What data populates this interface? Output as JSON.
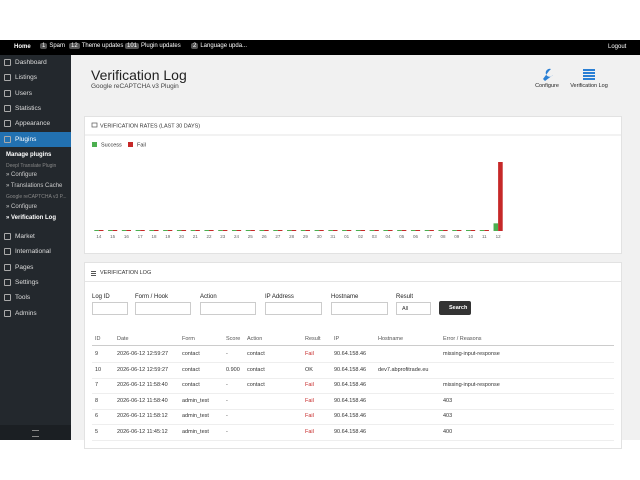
{
  "topbar": {
    "home": "Home",
    "items": [
      {
        "count": "1",
        "label": "Spam"
      },
      {
        "count": "12",
        "label": "Theme updates"
      },
      {
        "count": "101",
        "label": "Plugin updates"
      },
      {
        "count": "2",
        "label": "Language upda..."
      }
    ],
    "logout": "Logout"
  },
  "sidebar": {
    "menu_top": [
      "Dashboard",
      "Listings",
      "Users",
      "Statistics",
      "Appearance",
      "Plugins"
    ],
    "submenu": [
      "Manage plugins",
      "Deepl Translate Plugin",
      "» Configure",
      "» Translations Cache",
      "Google reCAPTCHA v3 P...",
      "» Configure",
      "» Verification Log"
    ],
    "menu_bottom": [
      "Market",
      "International",
      "Pages",
      "Settings",
      "Tools",
      "Admins"
    ]
  },
  "header": {
    "title": "Verification Log",
    "subtitle": "Google reCAPTCHA v3 Plugin",
    "buttons": [
      "Configure",
      "Verification Log"
    ]
  },
  "chart_data": {
    "type": "bar",
    "title": "VERIFICATION RATES (LAST 30 DAYS)",
    "categories": [
      "14",
      "15",
      "16",
      "17",
      "18",
      "19",
      "20",
      "21",
      "22",
      "23",
      "24",
      "25",
      "26",
      "27",
      "28",
      "29",
      "30",
      "31",
      "01",
      "02",
      "03",
      "04",
      "05",
      "06",
      "07",
      "08",
      "09",
      "10",
      "11",
      "12"
    ],
    "series": [
      {
        "name": "Success",
        "color": "#4caf50",
        "values": [
          0,
          0,
          0,
          0,
          0,
          0,
          0,
          0,
          0,
          0,
          0,
          0,
          0,
          0,
          0,
          0,
          0,
          0,
          0,
          0,
          0,
          0,
          0,
          0,
          0,
          0,
          0,
          0,
          0,
          1
        ]
      },
      {
        "name": "Fail",
        "color": "#c62828",
        "values": [
          0,
          0,
          0,
          0,
          0,
          0,
          0,
          0,
          0,
          0,
          0,
          0,
          0,
          0,
          0,
          0,
          0,
          0,
          0,
          0,
          0,
          0,
          0,
          0,
          0,
          0,
          0,
          0,
          0,
          9
        ]
      }
    ]
  },
  "log": {
    "title": "VERIFICATION LOG",
    "filters": [
      "Log ID",
      "Form / Hook",
      "Action",
      "IP Address",
      "Hostname",
      "Result"
    ],
    "result_option": "All",
    "search": "Search",
    "columns": [
      "ID",
      "Date",
      "Form",
      "Score",
      "Action",
      "Result",
      "IP",
      "Hostname",
      "Error / Reasons"
    ],
    "rows": [
      [
        9,
        "2026-06-12 12:59:27",
        "contact",
        "-",
        "contact",
        "Fail",
        "90.64.158.46",
        null,
        "missing-input-response"
      ],
      [
        10,
        "2026-06-12 12:59:27",
        "contact",
        "0.900",
        "contact",
        "OK",
        "90.64.158.46",
        "dev7.abprofitrade.eu",
        null
      ],
      [
        7,
        "2026-06-12 11:58:40",
        "contact",
        "-",
        "contact",
        "Fail",
        "90.64.158.46",
        null,
        "missing-input-response"
      ],
      [
        8,
        "2026-06-12 11:58:40",
        "admin_test",
        "-",
        null,
        "Fail",
        "90.64.158.46",
        null,
        "403"
      ],
      [
        6,
        "2026-06-12 11:58:12",
        "admin_test",
        "-",
        null,
        "Fail",
        "90.64.158.46",
        null,
        "403"
      ],
      [
        5,
        "2026-06-12 11:45:12",
        "admin_test",
        "-",
        null,
        "Fail",
        "90.64.158.46",
        null,
        "400"
      ]
    ]
  }
}
